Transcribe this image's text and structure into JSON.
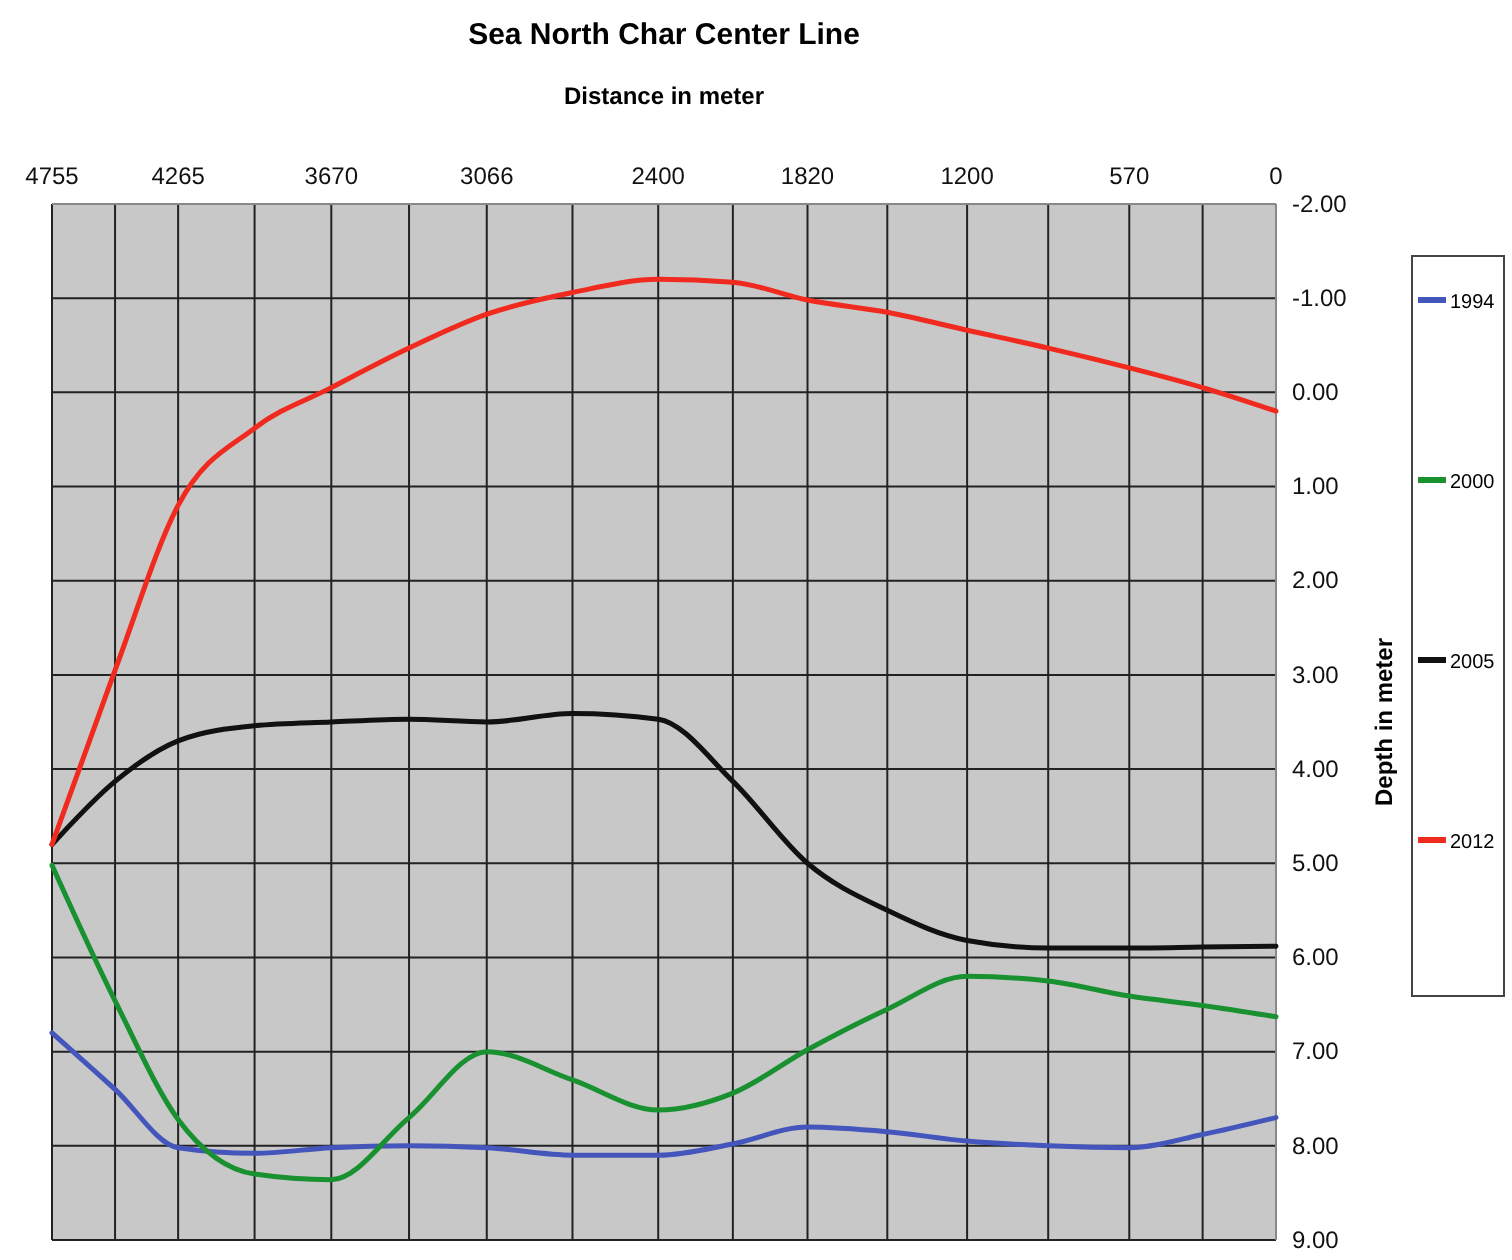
{
  "chart_data": {
    "type": "line",
    "title": "Sea North Char Center Line",
    "xlabel": "Distance in meter",
    "ylabel": "Depth in meter",
    "x": [
      4755,
      4510,
      4265,
      3968,
      3670,
      3368,
      3066,
      2733,
      2400,
      2110,
      1820,
      1510,
      1200,
      885,
      570,
      285,
      0
    ],
    "series": [
      {
        "name": "1994",
        "color": "#4455bb",
        "values": [
          6.8,
          7.4,
          8.02,
          8.08,
          8.02,
          8.0,
          8.02,
          8.1,
          8.1,
          7.98,
          7.8,
          7.85,
          7.95,
          8.0,
          8.02,
          7.88,
          7.7
        ]
      },
      {
        "name": "2000",
        "color": "#1a9130",
        "values": [
          5.02,
          6.46,
          7.72,
          8.3,
          8.36,
          7.7,
          7.0,
          7.3,
          7.62,
          7.44,
          6.98,
          6.55,
          6.2,
          6.25,
          6.41,
          6.51,
          6.63
        ]
      },
      {
        "name": "2005",
        "color": "#111111",
        "values": [
          4.8,
          4.13,
          3.7,
          3.54,
          3.5,
          3.47,
          3.5,
          3.41,
          3.47,
          4.13,
          5.0,
          5.5,
          5.82,
          5.9,
          5.9,
          5.89,
          5.88
        ]
      },
      {
        "name": "2012",
        "color": "#f02a1e",
        "values": [
          4.8,
          2.95,
          1.2,
          0.38,
          -0.05,
          -0.47,
          -0.83,
          -1.06,
          -1.2,
          -1.17,
          -0.98,
          -0.85,
          -0.66,
          -0.47,
          -0.26,
          -0.05,
          0.2
        ]
      }
    ],
    "xlim": [
      4755,
      0
    ],
    "xticks": [
      4755,
      {
        "value": 4510,
        "label": null
      },
      4265,
      {
        "value": 3968,
        "label": null
      },
      3670,
      {
        "value": 3368,
        "label": null
      },
      3066,
      {
        "value": 2733,
        "label": null
      },
      2400,
      {
        "value": 2110,
        "label": null
      },
      1820,
      {
        "value": 1510,
        "label": null
      },
      1200,
      {
        "value": 885,
        "label": null
      },
      570,
      {
        "value": 285,
        "label": null
      },
      0
    ],
    "ylim": [
      9,
      -2
    ],
    "yticks": [
      {
        "value": -2,
        "label": "-2.00"
      },
      {
        "value": -1,
        "label": "-1.00"
      },
      {
        "value": 0,
        "label": "0.00"
      },
      {
        "value": 1,
        "label": "1.00"
      },
      {
        "value": 2,
        "label": "2.00"
      },
      {
        "value": 3,
        "label": "3.00"
      },
      {
        "value": 4,
        "label": "4.00"
      },
      {
        "value": 5,
        "label": "5.00"
      },
      {
        "value": 6,
        "label": "6.00"
      },
      {
        "value": 7,
        "label": "7.00"
      },
      {
        "value": 8,
        "label": "8.00"
      },
      {
        "value": 9,
        "label": "9.00"
      }
    ],
    "grid": true,
    "legend": "right",
    "marker": "none",
    "line_style": "solid"
  }
}
